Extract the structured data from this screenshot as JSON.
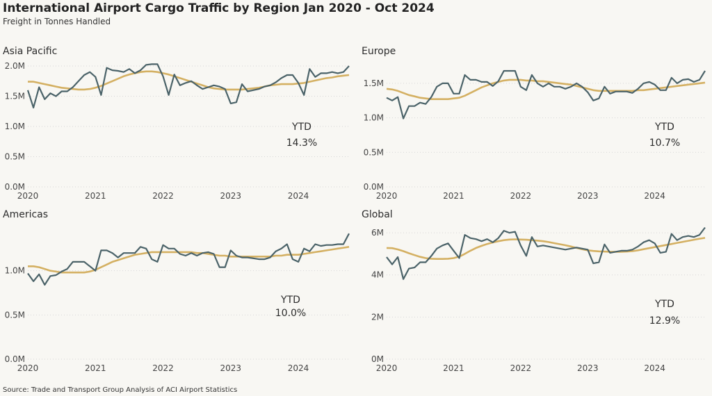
{
  "title": "International Airport Cargo Traffic by Region Jan 2020 - Oct 2024",
  "subtitle": "Freight in Tonnes Handled",
  "source": "Source: Trade and Transport Group Analysis of ACI Airport Statistics",
  "colors": {
    "actual": "#4a6268",
    "trend": "#d4b062",
    "grid": "#d6d6d6",
    "background": "#f8f7f3"
  },
  "ytd_label": "YTD",
  "chart_data": [
    {
      "type": "line",
      "title": "Asia Pacific",
      "x_start": "2020-01",
      "x_ticks": [
        "2020",
        "2021",
        "2022",
        "2023",
        "2024"
      ],
      "y_ticks": [
        "0.0M",
        "0.5M",
        "1.0M",
        "1.5M",
        "2.0M"
      ],
      "ylim": [
        0,
        2.0
      ],
      "ytd": "14.3%",
      "series": [
        {
          "values": [
            1.6,
            1.31,
            1.65,
            1.45,
            1.55,
            1.5,
            1.58,
            1.58,
            1.65,
            1.75,
            1.85,
            1.9,
            1.82,
            1.52,
            1.97,
            1.93,
            1.92,
            1.9,
            1.95,
            1.88,
            1.93,
            2.02,
            2.03,
            2.03,
            1.83,
            1.52,
            1.86,
            1.68,
            1.72,
            1.75,
            1.68,
            1.62,
            1.65,
            1.68,
            1.66,
            1.62,
            1.38,
            1.4,
            1.7,
            1.58,
            1.6,
            1.62,
            1.66,
            1.68,
            1.73,
            1.8,
            1.85,
            1.85,
            1.72,
            1.52,
            1.95,
            1.82,
            1.88,
            1.88,
            1.9,
            1.88,
            1.9,
            2.0
          ]
        },
        {
          "values": [
            1.74,
            1.74,
            1.72,
            1.7,
            1.68,
            1.66,
            1.64,
            1.63,
            1.62,
            1.61,
            1.61,
            1.62,
            1.64,
            1.67,
            1.71,
            1.75,
            1.79,
            1.83,
            1.86,
            1.88,
            1.9,
            1.91,
            1.91,
            1.9,
            1.88,
            1.86,
            1.83,
            1.8,
            1.77,
            1.74,
            1.71,
            1.68,
            1.65,
            1.63,
            1.62,
            1.61,
            1.61,
            1.61,
            1.61,
            1.62,
            1.63,
            1.64,
            1.66,
            1.68,
            1.69,
            1.7,
            1.7,
            1.7,
            1.71,
            1.72,
            1.74,
            1.76,
            1.78,
            1.8,
            1.81,
            1.83,
            1.84,
            1.85
          ]
        }
      ]
    },
    {
      "type": "line",
      "title": "Europe",
      "x_start": "2020-01",
      "x_ticks": [
        "2020",
        "2021",
        "2022",
        "2023",
        "2024"
      ],
      "y_ticks": [
        "0.0M",
        "0.5M",
        "1.0M",
        "1.5M"
      ],
      "ylim": [
        0,
        1.75
      ],
      "ytd": "10.7%",
      "series": [
        {
          "values": [
            1.29,
            1.25,
            1.3,
            0.99,
            1.17,
            1.17,
            1.22,
            1.2,
            1.3,
            1.45,
            1.5,
            1.5,
            1.35,
            1.35,
            1.62,
            1.55,
            1.55,
            1.52,
            1.52,
            1.46,
            1.53,
            1.68,
            1.68,
            1.68,
            1.45,
            1.4,
            1.62,
            1.5,
            1.45,
            1.5,
            1.45,
            1.45,
            1.42,
            1.45,
            1.5,
            1.45,
            1.37,
            1.25,
            1.28,
            1.45,
            1.35,
            1.38,
            1.38,
            1.38,
            1.36,
            1.42,
            1.5,
            1.52,
            1.48,
            1.4,
            1.4,
            1.58,
            1.5,
            1.55,
            1.56,
            1.52,
            1.55,
            1.68
          ]
        },
        {
          "values": [
            1.42,
            1.41,
            1.39,
            1.36,
            1.33,
            1.31,
            1.29,
            1.28,
            1.27,
            1.27,
            1.27,
            1.27,
            1.28,
            1.29,
            1.32,
            1.36,
            1.4,
            1.44,
            1.47,
            1.5,
            1.52,
            1.54,
            1.55,
            1.55,
            1.55,
            1.54,
            1.54,
            1.53,
            1.53,
            1.52,
            1.51,
            1.5,
            1.49,
            1.48,
            1.46,
            1.44,
            1.42,
            1.4,
            1.39,
            1.39,
            1.39,
            1.39,
            1.39,
            1.39,
            1.39,
            1.4,
            1.4,
            1.41,
            1.42,
            1.43,
            1.44,
            1.45,
            1.46,
            1.47,
            1.48,
            1.49,
            1.5,
            1.51
          ]
        }
      ]
    },
    {
      "type": "line",
      "title": "Americas",
      "x_start": "2020-01",
      "x_ticks": [
        "2020",
        "2021",
        "2022",
        "2023",
        "2024"
      ],
      "y_ticks": [
        "0.0M",
        "0.5M",
        "1.0M"
      ],
      "ylim": [
        0,
        1.5
      ],
      "ytd": "10.0%",
      "series": [
        {
          "values": [
            0.97,
            0.88,
            0.96,
            0.84,
            0.94,
            0.95,
            0.99,
            1.02,
            1.1,
            1.1,
            1.1,
            1.05,
            1.0,
            1.23,
            1.23,
            1.2,
            1.15,
            1.2,
            1.2,
            1.2,
            1.27,
            1.25,
            1.13,
            1.1,
            1.29,
            1.25,
            1.25,
            1.19,
            1.17,
            1.2,
            1.17,
            1.2,
            1.21,
            1.19,
            1.04,
            1.04,
            1.23,
            1.17,
            1.15,
            1.15,
            1.14,
            1.13,
            1.13,
            1.15,
            1.22,
            1.25,
            1.3,
            1.13,
            1.1,
            1.25,
            1.22,
            1.3,
            1.28,
            1.29,
            1.29,
            1.3,
            1.3,
            1.42
          ]
        },
        {
          "values": [
            1.05,
            1.05,
            1.04,
            1.02,
            1.0,
            0.99,
            0.98,
            0.98,
            0.98,
            0.98,
            0.98,
            0.99,
            1.01,
            1.04,
            1.07,
            1.1,
            1.12,
            1.14,
            1.16,
            1.18,
            1.19,
            1.2,
            1.21,
            1.21,
            1.21,
            1.21,
            1.21,
            1.21,
            1.21,
            1.21,
            1.2,
            1.2,
            1.19,
            1.18,
            1.17,
            1.17,
            1.16,
            1.16,
            1.16,
            1.16,
            1.16,
            1.16,
            1.16,
            1.16,
            1.17,
            1.17,
            1.18,
            1.18,
            1.18,
            1.19,
            1.2,
            1.21,
            1.22,
            1.23,
            1.24,
            1.25,
            1.26,
            1.27
          ]
        }
      ]
    },
    {
      "type": "line",
      "title": "Global",
      "x_start": "2020-01",
      "x_ticks": [
        "2020",
        "2021",
        "2022",
        "2023",
        "2024"
      ],
      "y_ticks": [
        "0M",
        "2M",
        "4M",
        "6M"
      ],
      "ylim": [
        0,
        6.3
      ],
      "ytd": "12.9%",
      "series": [
        {
          "values": [
            4.85,
            4.5,
            4.85,
            3.8,
            4.3,
            4.35,
            4.6,
            4.6,
            4.9,
            5.25,
            5.4,
            5.5,
            5.15,
            4.8,
            5.9,
            5.75,
            5.7,
            5.6,
            5.7,
            5.55,
            5.75,
            6.1,
            6.0,
            6.05,
            5.4,
            4.9,
            5.8,
            5.35,
            5.4,
            5.35,
            5.3,
            5.25,
            5.2,
            5.25,
            5.3,
            5.25,
            5.2,
            4.55,
            4.6,
            5.45,
            5.05,
            5.1,
            5.15,
            5.15,
            5.2,
            5.35,
            5.55,
            5.65,
            5.5,
            5.05,
            5.1,
            5.95,
            5.65,
            5.8,
            5.85,
            5.8,
            5.9,
            6.25
          ]
        },
        {
          "values": [
            5.28,
            5.27,
            5.21,
            5.13,
            5.03,
            4.94,
            4.86,
            4.8,
            4.77,
            4.76,
            4.76,
            4.77,
            4.8,
            4.87,
            5.0,
            5.15,
            5.28,
            5.38,
            5.47,
            5.54,
            5.6,
            5.65,
            5.68,
            5.69,
            5.68,
            5.67,
            5.65,
            5.63,
            5.6,
            5.56,
            5.51,
            5.46,
            5.41,
            5.35,
            5.28,
            5.22,
            5.17,
            5.14,
            5.12,
            5.11,
            5.1,
            5.1,
            5.1,
            5.11,
            5.13,
            5.17,
            5.22,
            5.27,
            5.32,
            5.37,
            5.42,
            5.47,
            5.52,
            5.57,
            5.62,
            5.67,
            5.72,
            5.76
          ]
        }
      ]
    }
  ]
}
